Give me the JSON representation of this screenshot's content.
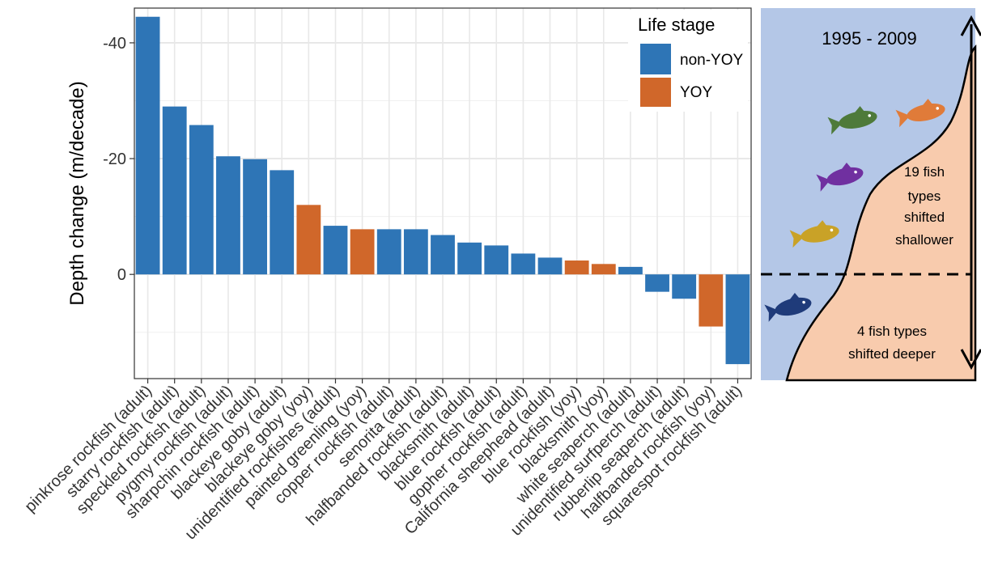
{
  "chart_data": {
    "type": "bar",
    "ylabel": "Depth change (m/decade)",
    "y_reversed": true,
    "ylim": [
      -46,
      18
    ],
    "y_ticks": [
      {
        "value": -40,
        "label": "-40"
      },
      {
        "value": -20,
        "label": "-20"
      },
      {
        "value": 0,
        "label": "0"
      }
    ],
    "grid": true,
    "legend": {
      "title": "Life stage",
      "position": "top-right",
      "entries": [
        {
          "label": "non-YOY",
          "color": "#2e75b6"
        },
        {
          "label": "YOY",
          "color": "#d0672a"
        }
      ]
    },
    "categories": [
      "pinkrose rockfish (adult)",
      "starry rockfish (adult)",
      "speckled rockfish (adult)",
      "pygmy rockfish (adult)",
      "sharpchin rockfish (adult)",
      "blackeye goby (adult)",
      "blackeye goby (yoy)",
      "unidentified rockfishes (adult)",
      "painted greenling (yoy)",
      "copper rockfish (adult)",
      "senorita (adult)",
      "halfbanded rockfish (adult)",
      "blacksmith (adult)",
      "blue rockfish (adult)",
      "gopher rockfish (adult)",
      "California sheephead (adult)",
      "blue rockfish (yoy)",
      "blacksmith (yoy)",
      "white seaperch (adult)",
      "unidentified surfperch (adult)",
      "rubberlip seaperch (adult)",
      "halfbanded rockfish (yoy)",
      "squarespot rockfish (adult)"
    ],
    "values": [
      -44.5,
      -29,
      -25.8,
      -20.4,
      -19.9,
      -18,
      -12,
      -8.4,
      -7.8,
      -7.8,
      -7.8,
      -6.8,
      -5.5,
      -5,
      -3.6,
      -2.9,
      -2.4,
      -1.8,
      -1.3,
      3,
      4.2,
      9,
      15.5
    ],
    "life_stage": [
      "non-YOY",
      "non-YOY",
      "non-YOY",
      "non-YOY",
      "non-YOY",
      "non-YOY",
      "YOY",
      "non-YOY",
      "YOY",
      "non-YOY",
      "non-YOY",
      "non-YOY",
      "non-YOY",
      "non-YOY",
      "non-YOY",
      "non-YOY",
      "YOY",
      "YOY",
      "non-YOY",
      "non-YOY",
      "non-YOY",
      "YOY",
      "non-YOY"
    ]
  },
  "inset": {
    "period": "1995 - 2009",
    "shallower_text": [
      "19 fish",
      "types",
      "shifted",
      "shallower"
    ],
    "deeper_text": [
      "4 fish types",
      "shifted deeper"
    ],
    "colors": {
      "water": "#b4c7e7",
      "seafloor": "#f8cbad",
      "fish_green": "#4e7a3a",
      "fish_orange": "#e07b39",
      "fish_purple": "#7030a0",
      "fish_gold": "#c9a227",
      "fish_navy": "#1f3b7a"
    }
  }
}
